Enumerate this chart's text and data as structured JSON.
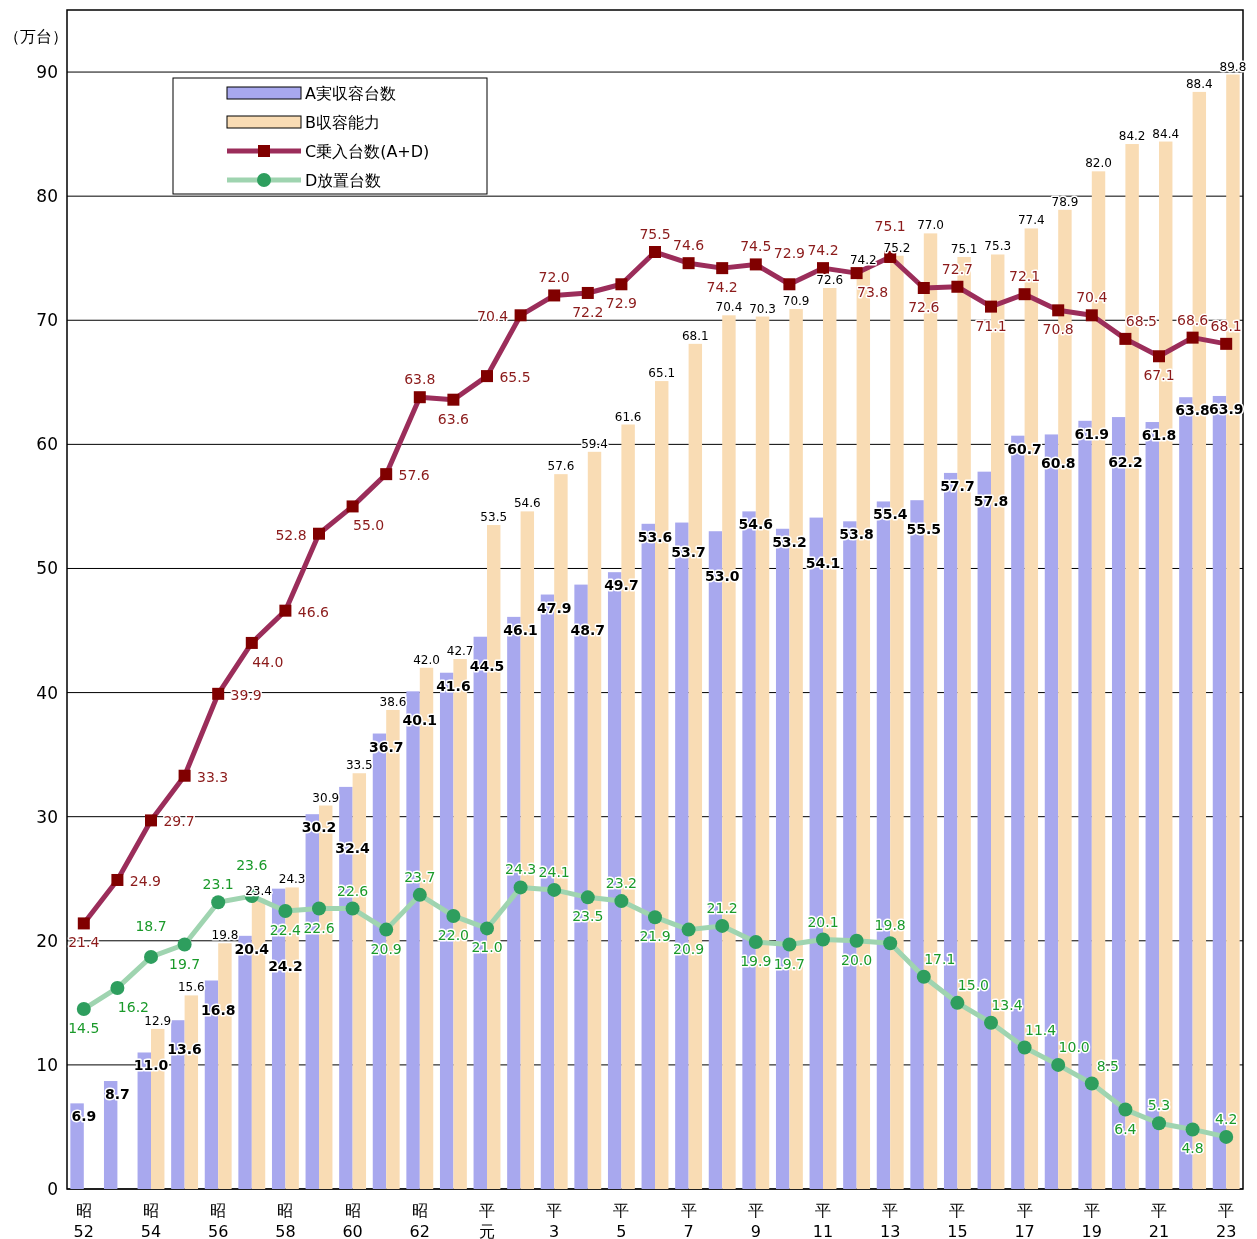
{
  "chart_data": {
    "type": "bar",
    "ylabel": "（万台）",
    "ylim": [
      0,
      95
    ],
    "yticks": [
      0,
      10,
      20,
      30,
      40,
      50,
      60,
      70,
      80,
      90
    ],
    "grid": "y",
    "legend": "top left",
    "categories": [
      "昭52",
      null,
      "昭54",
      null,
      "昭56",
      null,
      "昭58",
      null,
      "昭60",
      null,
      "昭62",
      null,
      "平元",
      null,
      "平3",
      null,
      "平5",
      null,
      "平7",
      null,
      "平9",
      null,
      "平11",
      null,
      "平13",
      null,
      "平15",
      null,
      "平17",
      null,
      "平19",
      null,
      "平21",
      null,
      "平23"
    ],
    "series": [
      {
        "name": "A実収容台数",
        "color": "#a8a8ee",
        "values": [
          6.9,
          8.7,
          11.0,
          13.6,
          16.8,
          20.4,
          24.2,
          30.2,
          32.4,
          36.7,
          40.1,
          41.6,
          44.5,
          46.1,
          47.9,
          48.7,
          49.7,
          53.6,
          53.7,
          53.0,
          54.6,
          53.2,
          54.1,
          53.8,
          55.4,
          55.5,
          57.7,
          57.8,
          60.7,
          60.8,
          61.9,
          62.2,
          61.8,
          63.8,
          63.9
        ],
        "value_labels": [
          "6.9",
          "8.7",
          "11.0",
          "13.6",
          "16.8",
          "20.4",
          "24.2",
          "30.2",
          "32.4",
          "36.7",
          "40.1",
          "41.6",
          "44.5",
          "46.1",
          "47.9",
          "48.7",
          "49.7",
          "53.6",
          "53.7",
          "53.0",
          "54.6",
          "53.2",
          "54.1",
          "53.8",
          "55.4",
          "55.5",
          "57.7",
          "57.8",
          "60.7",
          "60.8",
          "61.9",
          "62.2",
          "61.8",
          "63.8",
          "63.9"
        ]
      },
      {
        "name": "B収容能力",
        "color": "#f9dcb4",
        "values": [
          null,
          null,
          12.9,
          15.6,
          19.8,
          23.4,
          24.3,
          30.9,
          33.5,
          38.6,
          42.0,
          42.7,
          53.5,
          54.6,
          57.6,
          59.4,
          61.6,
          65.1,
          68.1,
          70.4,
          70.3,
          70.9,
          72.6,
          74.2,
          75.2,
          77.0,
          75.1,
          75.3,
          77.4,
          78.9,
          82.0,
          84.2,
          84.4,
          88.4,
          89.8
        ],
        "value_labels": [
          null,
          null,
          "12.9",
          "15.6",
          "19.8",
          "23.4",
          "24.3",
          "30.9",
          "33.5",
          "38.6",
          "42.0",
          "42.7",
          "53.5",
          "54.6",
          "57.6",
          "59.4",
          "61.6",
          "65.1",
          "68.1",
          "70.4",
          "70.3",
          "70.9",
          "72.6",
          "74.2",
          "75.2",
          "77.0",
          "75.1",
          "75.3",
          "77.4",
          "78.9",
          "82.0",
          "84.2",
          "84.4",
          "88.4",
          "89.8"
        ]
      },
      {
        "name": "C乗入台数(A+D)",
        "type": "line",
        "color": "#9b2d5a",
        "marker": "square",
        "values": [
          21.4,
          24.9,
          29.7,
          33.3,
          39.9,
          44.0,
          46.6,
          52.8,
          55.0,
          57.6,
          63.8,
          63.6,
          65.5,
          70.4,
          72.0,
          72.2,
          72.9,
          75.5,
          74.6,
          74.2,
          74.5,
          72.9,
          74.2,
          73.8,
          75.1,
          72.6,
          72.7,
          71.1,
          72.1,
          70.8,
          70.4,
          68.5,
          67.1,
          68.6,
          68.1
        ],
        "value_labels": [
          "21.4",
          "24.9",
          "29.7",
          "33.3",
          "39.9",
          "44.0",
          "46.6",
          "52.8",
          "55.0",
          "57.6",
          "63.8",
          "63.6",
          "65.5",
          "70.4",
          "72.0",
          "72.2",
          "72.9",
          "75.5",
          "74.6",
          "74.2",
          "74.5",
          "72.9",
          "74.2",
          "73.8",
          "75.1",
          "72.6",
          "72.7",
          "71.1",
          "72.1",
          "70.8",
          "70.4",
          "68.5",
          "67.1",
          "68.6",
          "68.1"
        ]
      },
      {
        "name": "D放置台数",
        "type": "line",
        "color": "#9fd4b0",
        "marker": "circle",
        "values": [
          14.5,
          16.2,
          18.7,
          19.7,
          23.1,
          23.6,
          22.4,
          22.6,
          22.6,
          20.9,
          23.7,
          22.0,
          21.0,
          24.3,
          24.1,
          23.5,
          23.2,
          21.9,
          20.9,
          21.2,
          19.9,
          19.7,
          20.1,
          20.0,
          19.8,
          17.1,
          15.0,
          13.4,
          11.4,
          10.0,
          8.5,
          6.4,
          5.3,
          4.8,
          4.2
        ],
        "value_labels": [
          "14.5",
          "16.2",
          "18.7",
          "19.7",
          "23.1",
          "23.6",
          "22.4",
          "22.6",
          "22.6",
          "20.9",
          "23.7",
          "22.0",
          "21.0",
          "24.3",
          "24.1",
          "23.5",
          "23.2",
          "21.9",
          "20.9",
          "21.2",
          "19.9",
          "19.7",
          "20.1",
          "20.0",
          "19.8",
          "17.1",
          "15.0",
          "13.4",
          "11.4",
          "10.0",
          "8.5",
          "6.4",
          "5.3",
          "4.8",
          "4.2"
        ]
      }
    ]
  }
}
